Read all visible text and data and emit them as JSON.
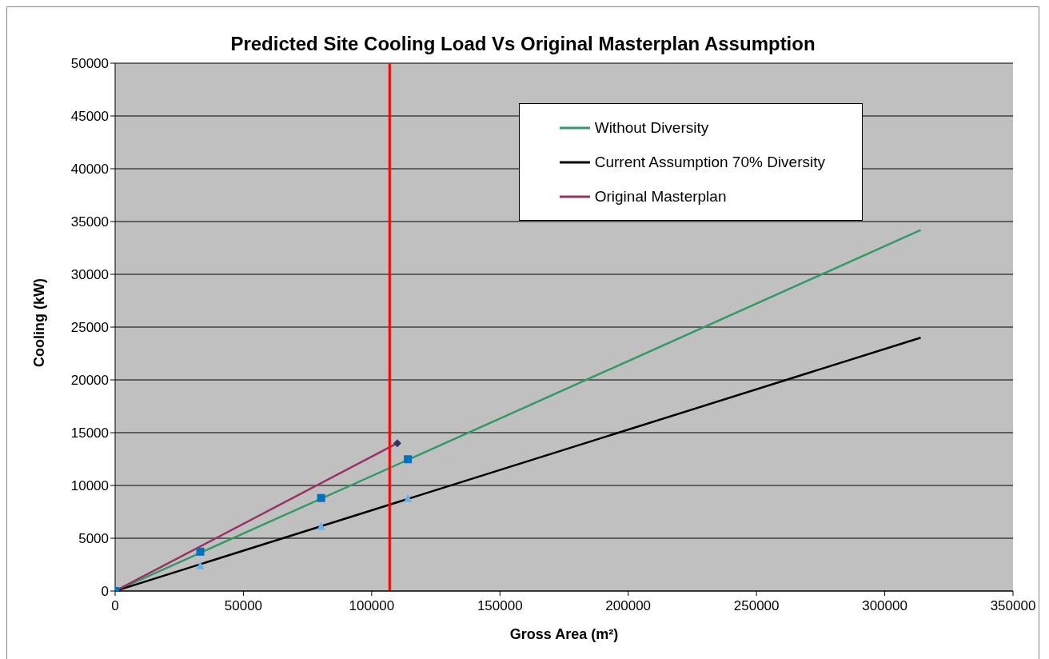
{
  "chart_data": {
    "type": "line",
    "title": "Predicted Site Cooling Load Vs Original Masterplan Assumption",
    "xlabel": "Gross Area (m²)",
    "ylabel": "Cooling (kW)",
    "xlim": [
      0,
      350000
    ],
    "xticks": [
      0,
      50000,
      100000,
      150000,
      200000,
      250000,
      300000,
      350000
    ],
    "ylim": [
      0,
      50000
    ],
    "yticks": [
      0,
      5000,
      10000,
      15000,
      20000,
      25000,
      30000,
      35000,
      40000,
      45000,
      50000
    ],
    "grid": "y",
    "legend": "top right",
    "series": [
      {
        "name": "Without Diversity",
        "color": "#339966",
        "x": [
          0,
          314000
        ],
        "values": [
          0,
          34200
        ]
      },
      {
        "name": "Current Assumption 70% Diversity",
        "color": "#000000",
        "x": [
          0,
          314000
        ],
        "values": [
          0,
          24000
        ]
      },
      {
        "name": "Original Masterplan",
        "color": "#993366",
        "marker": "diamond",
        "x": [
          0,
          110000
        ],
        "values": [
          0,
          14000
        ]
      },
      {
        "type": "scatter",
        "color": "#0070c0",
        "marker": "square",
        "x": [
          0,
          33200,
          80300,
          114100
        ],
        "values": [
          0,
          3730,
          8810,
          12480
        ]
      },
      {
        "type": "scatter",
        "color": "#66b2e8",
        "marker": "triangle",
        "x": [
          33200,
          80300,
          114100
        ],
        "values": [
          2440,
          6180,
          8810
        ]
      }
    ],
    "ref_lines": [
      {
        "axis": "x",
        "value": 107000,
        "color": "#ff0000"
      }
    ]
  }
}
